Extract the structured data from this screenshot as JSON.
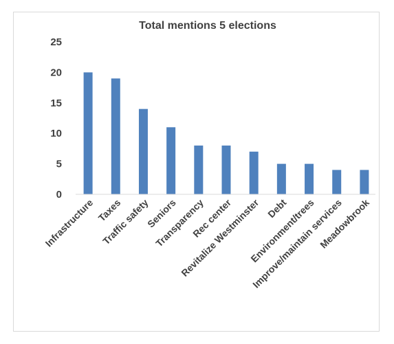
{
  "chart_data": {
    "type": "bar",
    "title": "Total mentions 5 elections",
    "xlabel": "",
    "ylabel": "",
    "ylim": [
      0,
      25
    ],
    "yticks": [
      0,
      5,
      10,
      15,
      20,
      25
    ],
    "grid": false,
    "legend": "none",
    "bar_color": "#4f81bd",
    "categories": [
      "Infrastructure",
      "Taxes",
      "Traffic safety",
      "Seniors",
      "Transparency",
      "Rec center",
      "Revitalize Westminster",
      "Debt",
      "Environment/trees",
      "Improve/maintain services",
      "Meadowbrook"
    ],
    "values": [
      20,
      19,
      14,
      11,
      8,
      8,
      7,
      5,
      5,
      4,
      4
    ]
  }
}
